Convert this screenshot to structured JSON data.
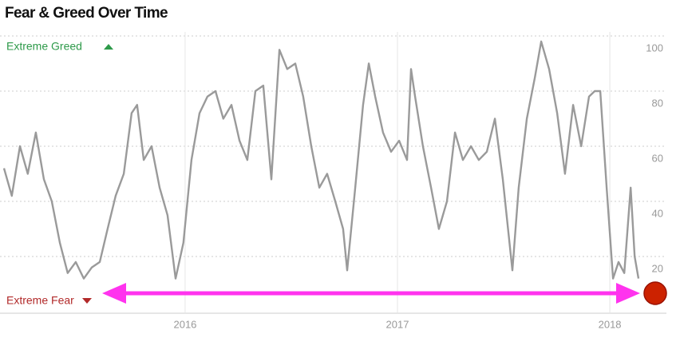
{
  "chart_data": {
    "type": "line",
    "title": "Fear & Greed Over Time",
    "annotations": [
      "Extreme Greed",
      "Extreme Fear"
    ],
    "xlim": [
      2015.147,
      2018.135
    ],
    "xticks": [
      2016,
      2017,
      2018
    ],
    "ylim": [
      0,
      100
    ],
    "yticks": [
      20,
      40,
      60,
      80,
      100
    ],
    "grid": true,
    "series": [
      {
        "color": "#9a9a9a",
        "x": [
          2015.147,
          2015.184,
          2015.222,
          2015.259,
          2015.297,
          2015.335,
          2015.372,
          2015.41,
          2015.447,
          2015.485,
          2015.523,
          2015.56,
          2015.598,
          2015.635,
          2015.673,
          2015.711,
          2015.748,
          2015.774,
          2015.805,
          2015.842,
          2015.88,
          2015.917,
          2015.955,
          2015.992,
          2016.03,
          2016.068,
          2016.105,
          2016.143,
          2016.18,
          2016.218,
          2016.256,
          2016.293,
          2016.331,
          2016.368,
          2016.406,
          2016.444,
          2016.481,
          2016.519,
          2016.556,
          2016.594,
          2016.632,
          2016.669,
          2016.707,
          2016.744,
          2016.763,
          2016.801,
          2016.838,
          2016.865,
          2016.895,
          2016.932,
          2016.97,
          2017.008,
          2017.045,
          2017.064,
          2017.083,
          2017.12,
          2017.158,
          2017.195,
          2017.233,
          2017.271,
          2017.308,
          2017.346,
          2017.383,
          2017.421,
          2017.459,
          2017.496,
          2017.541,
          2017.571,
          2017.609,
          2017.647,
          2017.677,
          2017.714,
          2017.752,
          2017.789,
          2017.827,
          2017.865,
          2017.902,
          2017.929,
          2017.955,
          2017.985,
          2018.015,
          2018.041,
          2018.068,
          2018.098,
          2018.117,
          2018.135
        ],
        "values": [
          52,
          42,
          60,
          50,
          65,
          48,
          40,
          25,
          14,
          18,
          12,
          16,
          18,
          30,
          42,
          50,
          72,
          75,
          55,
          60,
          45,
          35,
          12,
          25,
          55,
          72,
          78,
          80,
          70,
          75,
          62,
          55,
          80,
          82,
          48,
          95,
          88,
          90,
          78,
          60,
          45,
          50,
          40,
          30,
          15,
          45,
          75,
          90,
          78,
          65,
          58,
          62,
          55,
          88,
          78,
          60,
          45,
          30,
          40,
          65,
          55,
          60,
          55,
          58,
          70,
          48,
          15,
          45,
          70,
          85,
          98,
          88,
          72,
          50,
          75,
          60,
          78,
          80,
          80,
          45,
          12,
          18,
          14,
          45,
          20,
          12
        ]
      }
    ]
  }
}
